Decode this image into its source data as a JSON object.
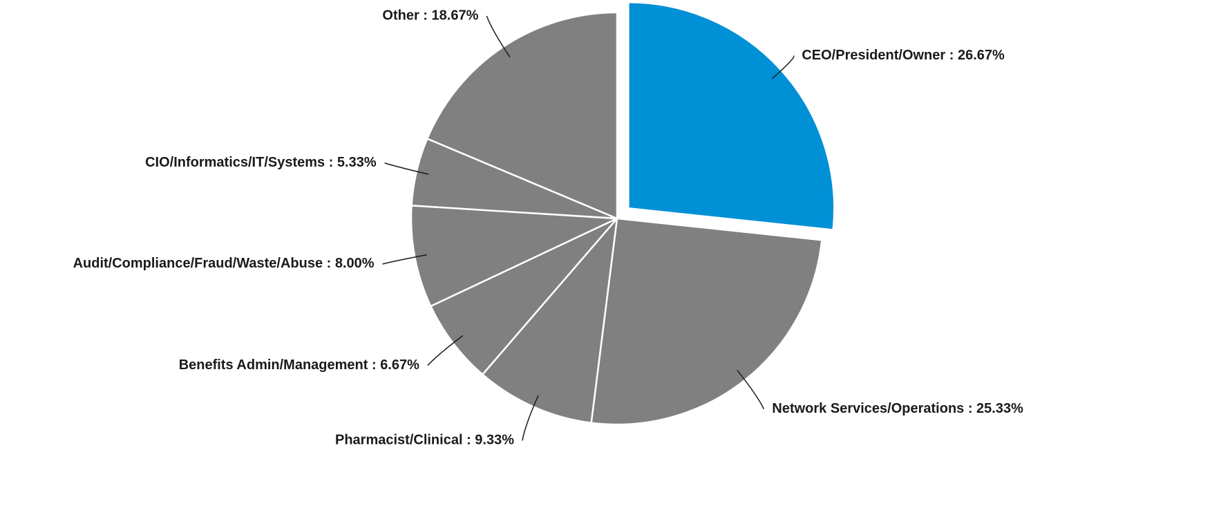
{
  "chart_data": {
    "type": "pie",
    "values": [
      26.67,
      25.33,
      9.33,
      6.67,
      8.0,
      5.33,
      18.67
    ],
    "value_labels": [
      "CEO/President/Owner : 26.67%",
      "Network Services/Operations : 25.33%",
      "Pharmacist/Clinical : 9.33%",
      "Benefits Admin/Management : 6.67%",
      "Audit/Compliance/Fraud/Waste/Abuse : 8.00%",
      "CIO/Informatics/IT/Systems : 5.33%",
      "Other : 18.67%"
    ],
    "colors": [
      "#0090d6",
      "#808080",
      "#808080",
      "#808080",
      "#808080",
      "#808080",
      "#808080"
    ]
  }
}
